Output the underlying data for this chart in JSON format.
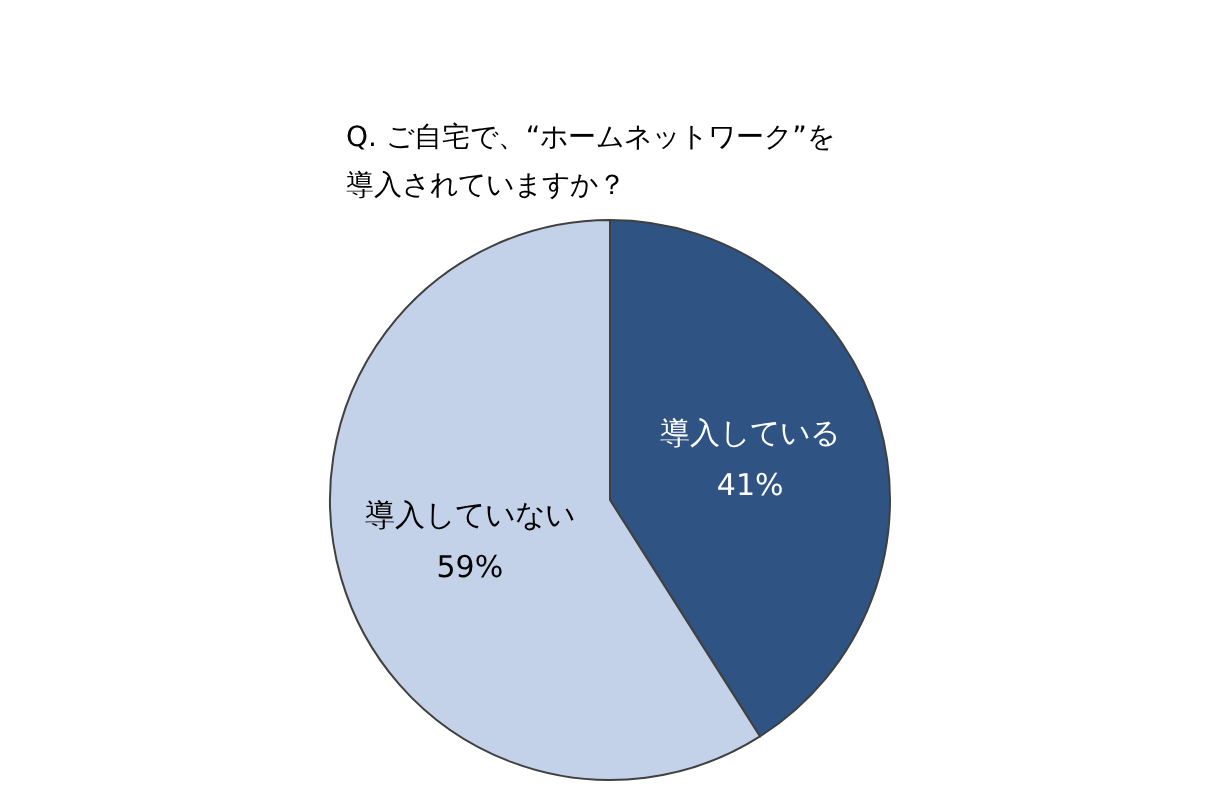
{
  "chart_data": {
    "type": "pie",
    "title": "Q. ご自宅で、“ホームネットワーク”を導入されていますか？",
    "categories": [
      "導入している",
      "導入していない"
    ],
    "values": [
      41,
      59
    ],
    "colors": [
      "#2f5383",
      "#c3d2e8"
    ],
    "value_labels": [
      "41%",
      "59%"
    ],
    "legend": false
  }
}
